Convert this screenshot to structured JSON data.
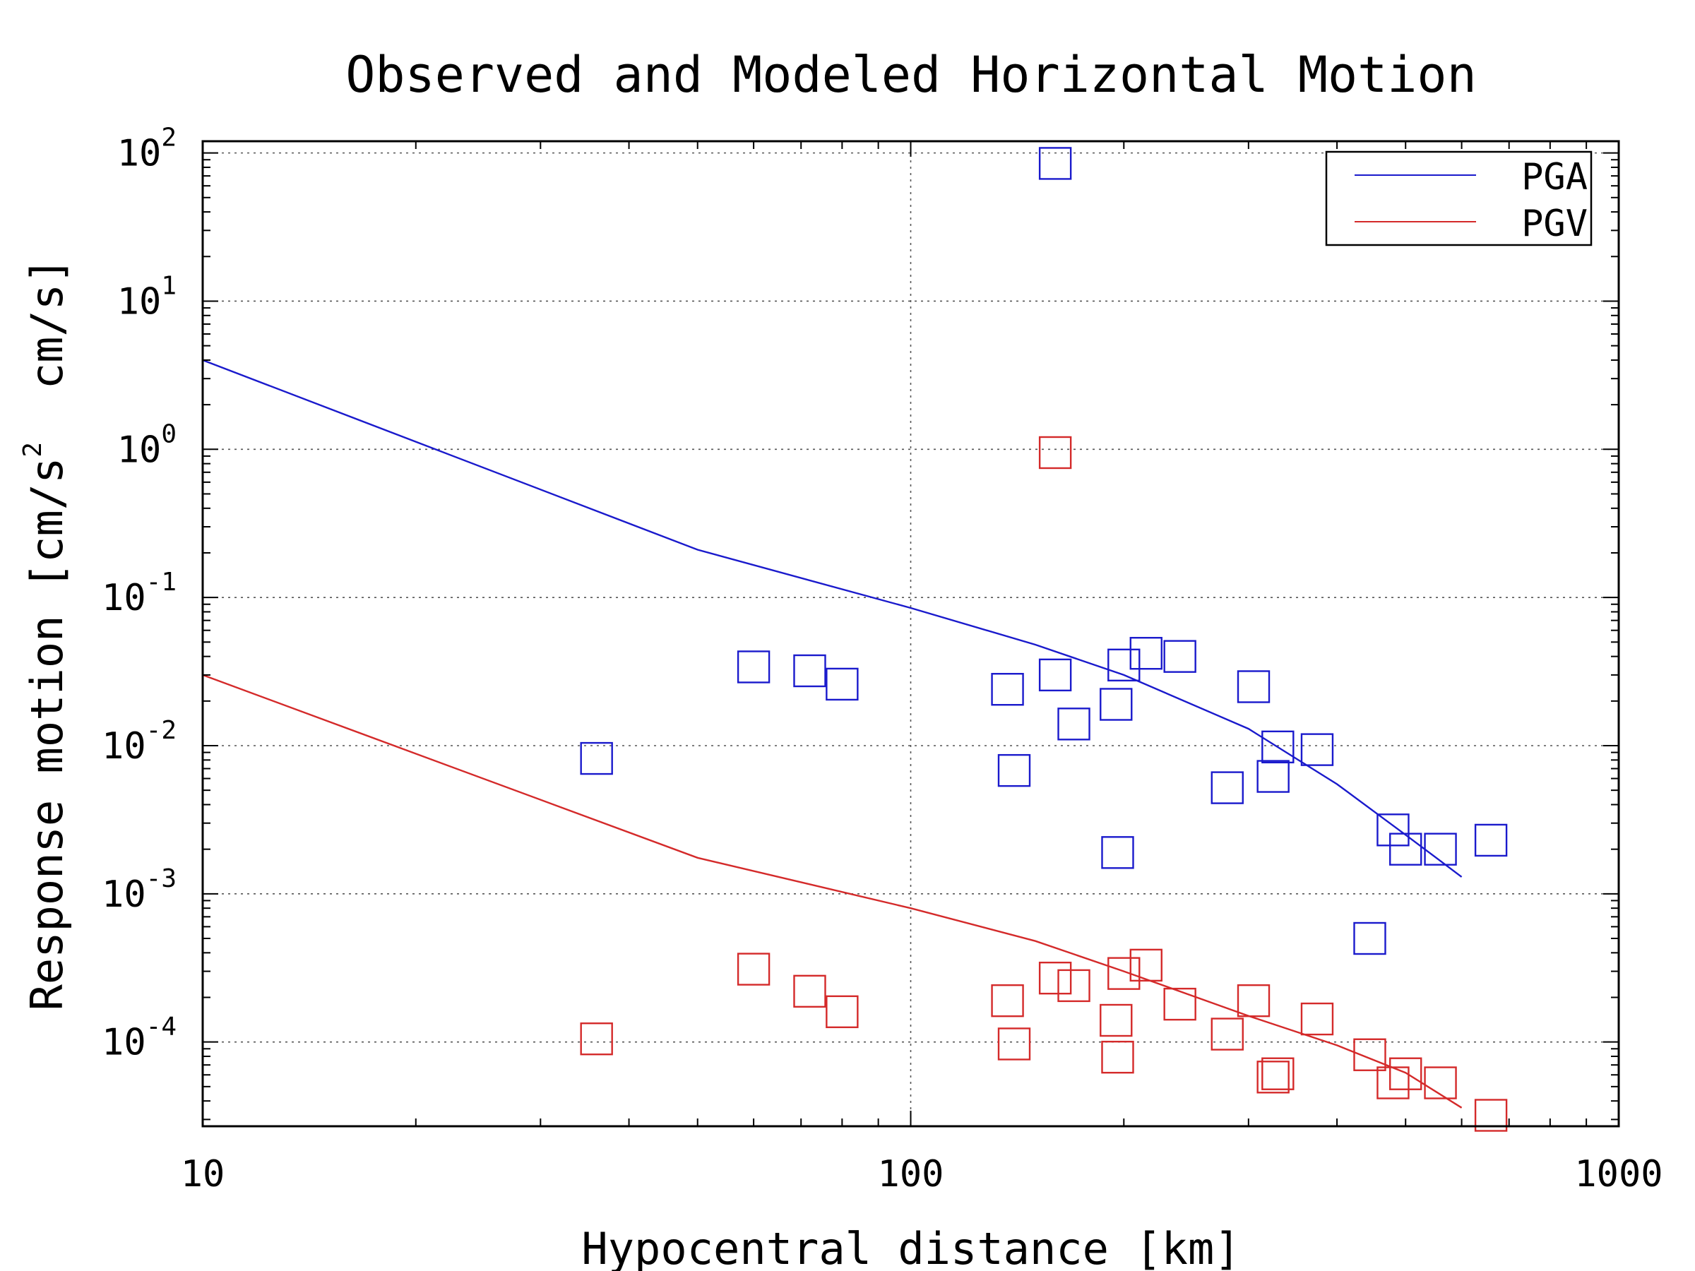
{
  "chart_data": {
    "type": "scatter",
    "title": "Observed and Modeled Horizontal Motion",
    "xlabel": "Hypocentral distance [km]",
    "ylabel_parts": [
      "Response motion [cm/s",
      "2",
      "  cm/s]"
    ],
    "x_scale": "log",
    "y_scale": "log",
    "xlim": [
      10,
      1000
    ],
    "ylim": [
      2.7e-05,
      120
    ],
    "x_ticks": [
      {
        "value": 10,
        "label": "10"
      },
      {
        "value": 100,
        "label": "100"
      },
      {
        "value": 1000,
        "label": "1000"
      }
    ],
    "y_ticks": [
      {
        "value": 100,
        "base": "10",
        "exp": "2"
      },
      {
        "value": 10,
        "base": "10",
        "exp": "1"
      },
      {
        "value": 1,
        "base": "10",
        "exp": "0"
      },
      {
        "value": 0.1,
        "base": "10",
        "exp": "-1"
      },
      {
        "value": 0.01,
        "base": "10",
        "exp": "-2"
      },
      {
        "value": 0.001,
        "base": "10",
        "exp": "-3"
      },
      {
        "value": 0.0001,
        "base": "10",
        "exp": "-4"
      }
    ],
    "grid": true,
    "legend_position": "top-right",
    "series": [
      {
        "name": "PGA",
        "color": "#1a1acc",
        "line": {
          "x": [
            10,
            50,
            100,
            150,
            200,
            300,
            400,
            500,
            600
          ],
          "y": [
            4.0,
            0.21,
            0.085,
            0.048,
            0.03,
            0.013,
            0.0055,
            0.0025,
            0.0013
          ]
        },
        "points": {
          "x": [
            36,
            60,
            72,
            80,
            137,
            140,
            160,
            170,
            195,
            196,
            200,
            215,
            240,
            280,
            305,
            325,
            330,
            375,
            445,
            480,
            500,
            560,
            660,
            160
          ],
          "y": [
            0.0082,
            0.034,
            0.032,
            0.026,
            0.024,
            0.0068,
            0.03,
            0.014,
            0.019,
            0.0019,
            0.035,
            0.042,
            0.04,
            0.0052,
            0.025,
            0.0062,
            0.0098,
            0.0094,
            0.0005,
            0.0027,
            0.002,
            0.002,
            0.0023,
            85
          ]
        }
      },
      {
        "name": "PGV",
        "color": "#d42a2a",
        "line": {
          "x": [
            10,
            50,
            100,
            150,
            200,
            300,
            400,
            500,
            600
          ],
          "y": [
            0.03,
            0.00175,
            0.0008,
            0.00048,
            0.0003,
            0.00015,
            9.5e-05,
            6.2e-05,
            3.6e-05
          ]
        },
        "points": {
          "x": [
            36,
            60,
            72,
            80,
            137,
            140,
            160,
            170,
            195,
            196,
            200,
            215,
            240,
            280,
            305,
            325,
            330,
            375,
            445,
            480,
            500,
            560,
            660,
            160
          ],
          "y": [
            0.000105,
            0.00031,
            0.00022,
            0.00016,
            0.00019,
            9.7e-05,
            0.00027,
            0.00024,
            0.00014,
            7.9e-05,
            0.00029,
            0.00033,
            0.00018,
            0.000113,
            0.00019,
            5.8e-05,
            6.1e-05,
            0.000143,
            8.2e-05,
            5.3e-05,
            6.1e-05,
            5.3e-05,
            3.2e-05,
            0.95
          ]
        }
      }
    ]
  }
}
